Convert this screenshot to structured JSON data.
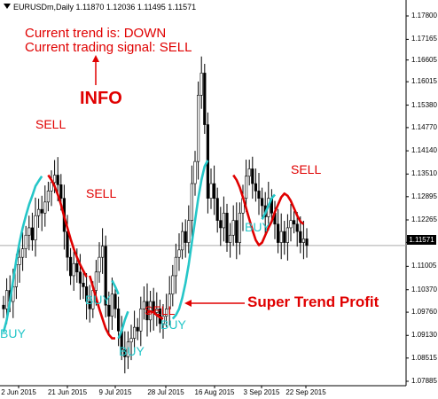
{
  "header": {
    "text": "EURUSDm,Daily  1.11870 1.12036 1.11495 1.11571"
  },
  "info": {
    "trend_line": "Current trend is: DOWN",
    "signal_line": "Current trading signal: SELL",
    "title": "INFO"
  },
  "annotation": {
    "label": "Super Trend Profit"
  },
  "current_price": "1.11571",
  "colors": {
    "sell": "#e00000",
    "buy": "#25c6c8",
    "bull_candle": "#ffffff",
    "bear_candle": "#000000",
    "arrow": "#e00000"
  },
  "y_axis": {
    "ticks": [
      "1.17800",
      "1.17165",
      "1.16605",
      "1.16015",
      "1.15380",
      "1.14770",
      "1.14140",
      "1.13510",
      "1.12895",
      "1.12265",
      "1.11655",
      "1.11005",
      "1.10370",
      "1.09760",
      "1.09130",
      "1.08515",
      "1.07885"
    ],
    "min": 1.07885,
    "max": 1.178
  },
  "x_axis": {
    "ticks": [
      "2 Jun 2015",
      "21 Jun 2015",
      "9 Jul 2015",
      "28 Jul 2015",
      "16 Aug 2015",
      "3 Sep 2015",
      "22 Sep 2015"
    ]
  },
  "signals": [
    {
      "text": "SELL",
      "type": "sell"
    },
    {
      "text": "SELL",
      "type": "sell"
    },
    {
      "text": "BUY",
      "type": "buy"
    },
    {
      "text": "SELL",
      "type": "sell"
    },
    {
      "text": "BUY",
      "type": "buy"
    },
    {
      "text": "BUY",
      "type": "buy"
    },
    {
      "text": "BUY",
      "type": "buy"
    },
    {
      "text": "SELL",
      "type": "sell"
    },
    {
      "text": "BUY",
      "type": "buy"
    }
  ],
  "chart_data": {
    "type": "candlestick",
    "title": "EURUSDm,Daily",
    "ylim": [
      1.07885,
      1.178
    ],
    "xlabel": "",
    "ylabel": "",
    "grid": false,
    "series": [
      {
        "name": "SuperTrend",
        "values": []
      }
    ],
    "candles_close": [
      1.0985,
      1.1035,
      1.1005,
      1.1045,
      1.1105,
      1.1125,
      1.1148,
      1.1185,
      1.1205,
      1.1172,
      1.1238,
      1.1255,
      1.1245,
      1.1275,
      1.1305,
      1.1328,
      1.1348,
      1.1322,
      1.1285,
      1.1195,
      1.1125,
      1.1075,
      1.1108,
      1.1085,
      1.1055,
      1.1045,
      1.1005,
      1.0985,
      1.1035,
      1.1085,
      1.1125,
      1.1155,
      1.0995,
      1.0965,
      1.1025,
      1.0985,
      1.0925,
      1.0875,
      1.0855,
      1.0895,
      1.0905,
      1.0935,
      1.0925,
      1.0985,
      1.1005,
      1.0955,
      1.1005,
      1.0975,
      1.0985,
      1.0945,
      1.0965,
      1.0985,
      1.1025,
      1.1075,
      1.1125,
      1.1145,
      1.1195,
      1.1165,
      1.1225,
      1.1325,
      1.1385,
      1.1565,
      1.1625,
      1.1485,
      1.1285,
      1.1325,
      1.1285,
      1.1225,
      1.1205,
      1.1245,
      1.1165,
      1.1185,
      1.1225,
      1.1165,
      1.1245,
      1.1285,
      1.1345,
      1.1365,
      1.1325,
      1.1305,
      1.1285,
      1.1265,
      1.1235,
      1.1285,
      1.1245,
      1.1215,
      1.1165,
      1.1195,
      1.1165,
      1.1205,
      1.1225,
      1.1215,
      1.1195,
      1.1165,
      1.1175,
      1.1157
    ],
    "supertrend_sell_segments": [
      [
        1.1348,
        1.1335,
        1.1318,
        1.1295,
        1.1268,
        1.1235,
        1.1205,
        1.1175,
        1.1148,
        1.1125,
        1.1105,
        1.1088,
        1.1072
      ],
      [
        1.1075,
        1.1045,
        1.1015,
        1.0985,
        1.0958,
        1.0932,
        1.0915,
        1.0905,
        1.0905
      ],
      [
        1.0975,
        1.0978,
        1.0976,
        1.0968,
        1.0962,
        1.0958
      ],
      [
        1.1348,
        1.1335,
        1.1315,
        1.1288,
        1.1258,
        1.1228,
        1.1198,
        1.1172,
        1.1158,
        1.1165,
        1.1185,
        1.1205,
        1.1222,
        1.1248,
        1.1268,
        1.1288,
        1.1298,
        1.1292,
        1.1278,
        1.1258,
        1.1238,
        1.1222,
        1.1215
      ]
    ],
    "supertrend_buy_segments": [
      [
        1.0922,
        1.0955,
        1.1005,
        1.1062,
        1.1118,
        1.1165,
        1.1205,
        1.1238,
        1.1268,
        1.1292,
        1.1318,
        1.1332,
        1.1345
      ],
      [
        1.1062,
        1.1045,
        1.1025
      ],
      [
        1.0905,
        1.0925,
        1.0955,
        1.0978
      ],
      [
        1.0958,
        1.0968,
        1.0985,
        1.1015,
        1.1055,
        1.1105,
        1.1165,
        1.1225,
        1.1285,
        1.1335,
        1.1372,
        1.1388
      ],
      [
        1.1228,
        1.1245,
        1.1265,
        1.1285,
        1.1295
      ]
    ]
  }
}
